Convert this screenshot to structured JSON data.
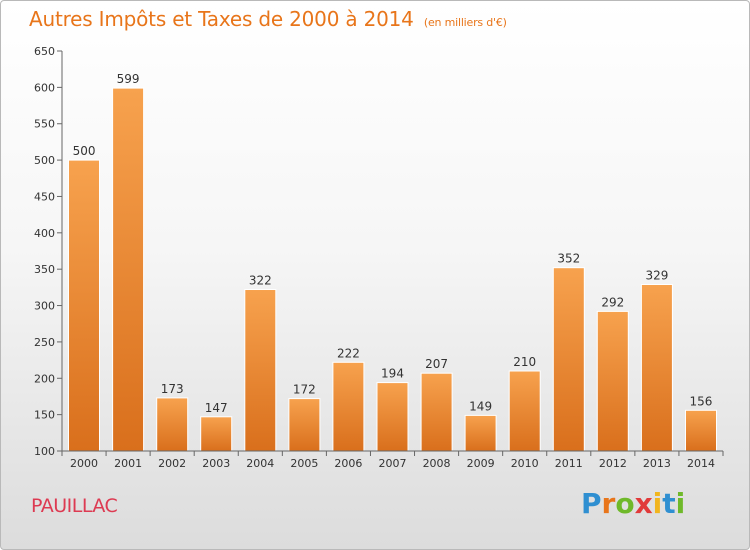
{
  "header": {
    "title": "Autres Impôts et Taxes de 2000 à 2014",
    "unit": "(en milliers d'€)"
  },
  "footer": {
    "city": "PAUILLAC",
    "logo_letters": [
      "P",
      "r",
      "o",
      "x",
      "i",
      "t",
      "i"
    ]
  },
  "colors": {
    "title": "#e8751a",
    "city": "#dd3a52",
    "bar_light": "#f7a24e",
    "bar_dark": "#d96f1c",
    "axis": "#555555",
    "grid": "#cfcfcf"
  },
  "chart_data": {
    "type": "bar",
    "title": "Autres Impôts et Taxes de 2000 à 2014",
    "subtitle": "(en milliers d'€)",
    "xlabel": "",
    "ylabel": "",
    "categories": [
      "2000",
      "2001",
      "2002",
      "2003",
      "2004",
      "2005",
      "2006",
      "2007",
      "2008",
      "2009",
      "2010",
      "2011",
      "2012",
      "2013",
      "2014"
    ],
    "values": [
      500,
      599,
      173,
      147,
      322,
      172,
      222,
      194,
      207,
      149,
      210,
      352,
      292,
      329,
      156
    ],
    "ylim": [
      100,
      650
    ],
    "yticks": [
      100,
      150,
      200,
      250,
      300,
      350,
      400,
      450,
      500,
      550,
      600,
      650
    ],
    "grid": false,
    "data_labels": true
  }
}
